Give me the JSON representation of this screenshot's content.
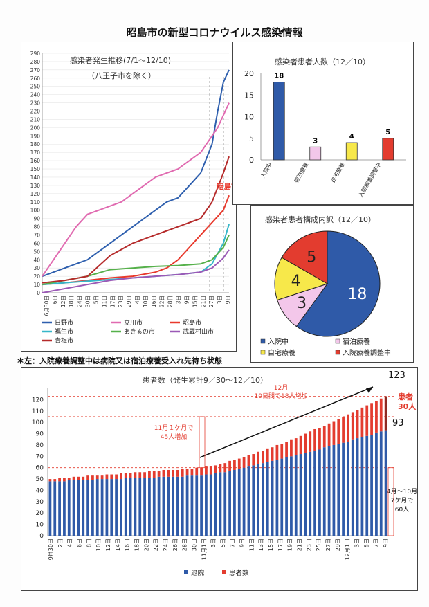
{
  "page": {
    "title": "昭島市の新型コロナウイルス感染情報",
    "note": "＊左：入院療養調整中は病院又は宿泊療養受入れ先待ち状態"
  },
  "chart_data": [
    {
      "type": "line",
      "title": "感染者発生推移(7/1～12/10)",
      "subtitle": "（八王子市を除く）",
      "highlight_label": "昭島市",
      "ylim": [
        0,
        290
      ],
      "yticks": [
        0,
        10,
        20,
        30,
        40,
        50,
        60,
        70,
        80,
        90,
        100,
        110,
        120,
        130,
        140,
        150,
        160,
        170,
        180,
        190,
        200,
        210,
        220,
        230,
        240,
        250,
        260,
        270,
        280,
        290
      ],
      "xticks": [
        "6月30日",
        "6日",
        "12日",
        "18日",
        "24日",
        "30日",
        "5日",
        "11日",
        "17日",
        "23日",
        "29日",
        "4日",
        "10日",
        "16日",
        "22日",
        "28日",
        "3日",
        "9日",
        "15日",
        "21日",
        "27日",
        "3日",
        "9日"
      ],
      "grid": true,
      "legend_position": "bottom",
      "dashed_markers_x": [
        160,
        148
      ],
      "series": [
        {
          "name": "日野市",
          "color": "#2e5fae",
          "x": [
            0,
            10,
            20,
            30,
            40,
            50,
            60,
            70,
            80,
            90,
            100,
            110,
            120,
            130,
            140,
            150,
            155,
            160,
            165
          ],
          "values": [
            20,
            25,
            30,
            35,
            40,
            50,
            60,
            70,
            80,
            90,
            100,
            110,
            115,
            130,
            145,
            180,
            220,
            255,
            270
          ]
        },
        {
          "name": "立川市",
          "color": "#e06ab0",
          "x": [
            0,
            10,
            20,
            30,
            40,
            50,
            60,
            70,
            80,
            90,
            100,
            110,
            120,
            130,
            140,
            150,
            155,
            160,
            165
          ],
          "values": [
            20,
            40,
            60,
            80,
            95,
            100,
            105,
            110,
            120,
            130,
            140,
            145,
            150,
            160,
            170,
            190,
            200,
            215,
            230
          ]
        },
        {
          "name": "昭島市",
          "color": "#e8392c",
          "x": [
            0,
            20,
            40,
            60,
            80,
            100,
            110,
            120,
            130,
            140,
            150,
            160,
            165
          ],
          "values": [
            10,
            12,
            15,
            18,
            20,
            25,
            30,
            40,
            55,
            70,
            85,
            100,
            118
          ]
        },
        {
          "name": "福生市",
          "color": "#36b7c9",
          "x": [
            0,
            20,
            40,
            60,
            80,
            100,
            120,
            140,
            150,
            160,
            165
          ],
          "values": [
            10,
            12,
            14,
            16,
            18,
            20,
            22,
            25,
            35,
            60,
            83
          ]
        },
        {
          "name": "あきるの市",
          "color": "#55b04a",
          "x": [
            0,
            20,
            40,
            60,
            80,
            100,
            120,
            140,
            150,
            160,
            165
          ],
          "values": [
            10,
            15,
            20,
            28,
            30,
            32,
            33,
            35,
            40,
            55,
            70
          ]
        },
        {
          "name": "武蔵村山市",
          "color": "#9b59b6",
          "x": [
            0,
            20,
            40,
            60,
            80,
            100,
            120,
            140,
            150,
            160,
            165
          ],
          "values": [
            0,
            5,
            10,
            15,
            18,
            20,
            22,
            25,
            30,
            42,
            52
          ]
        },
        {
          "name": "青梅市",
          "color": "#b52a2a",
          "x": [
            0,
            20,
            40,
            60,
            80,
            100,
            120,
            140,
            150,
            160,
            165
          ],
          "values": [
            12,
            15,
            20,
            45,
            60,
            70,
            80,
            90,
            110,
            145,
            165
          ]
        }
      ]
    },
    {
      "type": "bar",
      "title": "感染者患者人数（12／10）",
      "categories": [
        "入院中",
        "宿泊療養",
        "自宅療養",
        "入院療養調整中"
      ],
      "values": [
        18,
        3,
        4,
        5
      ],
      "colors": [
        "#2f5aa8",
        "#f3c7ea",
        "#f7e84a",
        "#e33c2f"
      ],
      "ylim": [
        0,
        20
      ],
      "yticks": [
        0,
        5,
        10,
        15,
        20
      ]
    },
    {
      "type": "pie",
      "title": "感染者患者構成内訳（12／10）",
      "categories": [
        "入院中",
        "宿泊療養",
        "自宅療養",
        "入院療養調整中"
      ],
      "values": [
        18,
        3,
        4,
        5
      ],
      "colors": [
        "#2f5aa8",
        "#f3c7ea",
        "#f7e84a",
        "#e33c2f"
      ],
      "legend_position": "bottom"
    },
    {
      "type": "bar",
      "title": "患者数（発生累計9／30～12／10）",
      "stacked": true,
      "ylim": [
        0,
        130
      ],
      "yticks": [
        0,
        10,
        20,
        30,
        40,
        50,
        60,
        70,
        80,
        90,
        100,
        110,
        120
      ],
      "xticks": [
        "9月30日",
        "2日",
        "4日",
        "6日",
        "8日",
        "10日",
        "12日",
        "14日",
        "16日",
        "18日",
        "20日",
        "22日",
        "24日",
        "26日",
        "28日",
        "30日",
        "11月1日",
        "3日",
        "5日",
        "7日",
        "9日",
        "11日",
        "13日",
        "15日",
        "17日",
        "19日",
        "21日",
        "23日",
        "25日",
        "27日",
        "29日",
        "12月1日",
        "3日",
        "5日",
        "7日",
        "9日"
      ],
      "series": [
        {
          "name": "退院",
          "color": "#2f5aa8"
        },
        {
          "name": "患者数",
          "color": "#e33c2f"
        }
      ],
      "n_bars": 72,
      "discharged_start": 48,
      "discharged_mid": 53,
      "discharged_end": 93,
      "total_start": 50,
      "total_mid": 60,
      "total_end": 123,
      "annotations": {
        "end_total": "123",
        "end_discharged": "93",
        "active_patients": "患者\n30人",
        "dec_increase": "12月\n10日間で18人増加",
        "nov_increase": "11月１ケ月で\n45人増加",
        "apr_oct": "4月～10月\n7ケ月で\n60人"
      },
      "reference_lines": [
        60,
        105,
        123
      ]
    }
  ]
}
